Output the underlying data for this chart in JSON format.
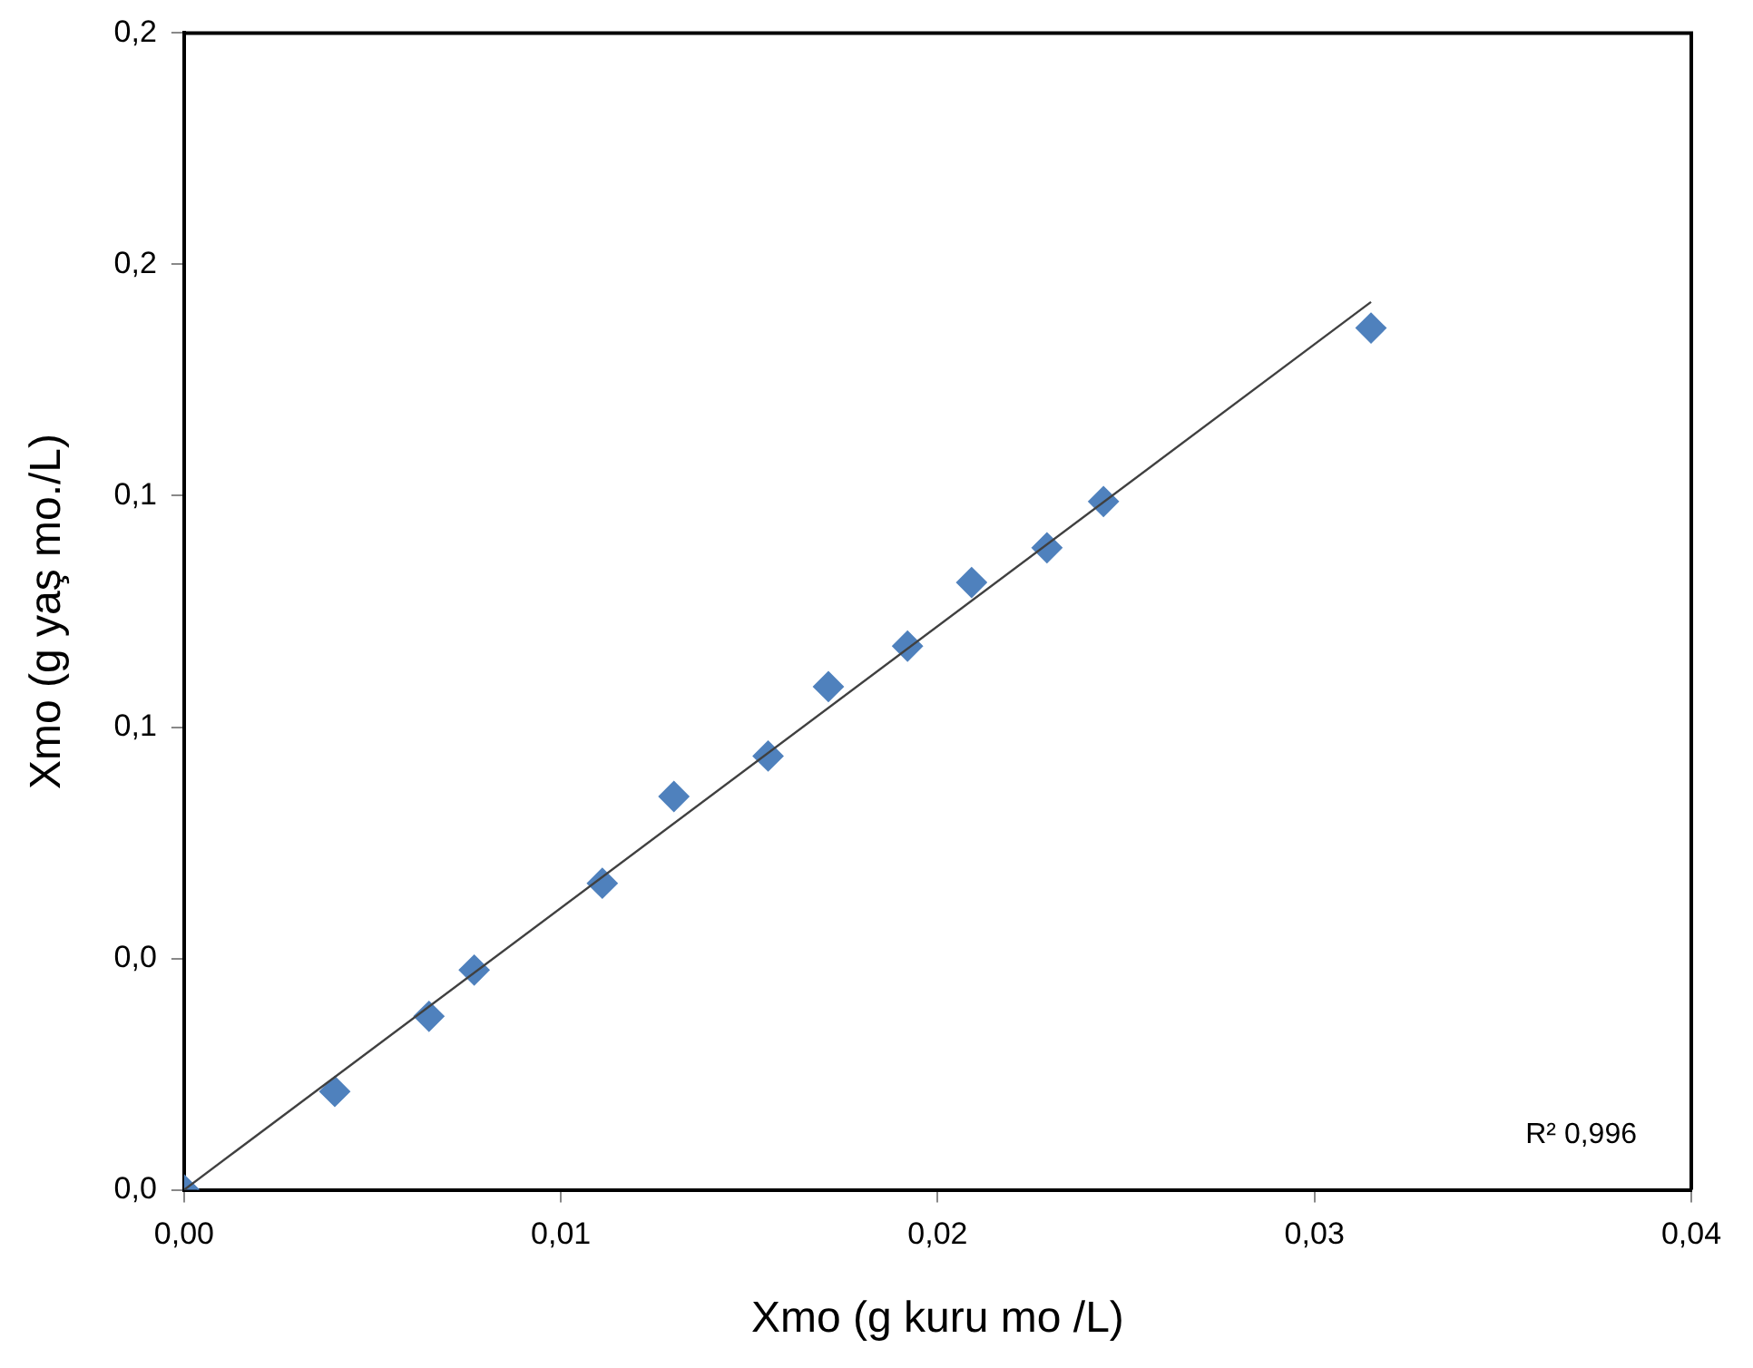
{
  "chart_data": {
    "type": "scatter",
    "xlabel": "Xmo (g kuru mo /L)",
    "ylabel": "Xmo (g yaş mo./L)",
    "annotations": [
      "R² 0,996"
    ],
    "xlim": [
      0,
      0.04
    ],
    "xticks": [
      {
        "value": 0,
        "label": "0,00"
      },
      {
        "value": 0.01,
        "label": "0,01"
      },
      {
        "value": 0.02,
        "label": "0,02"
      },
      {
        "value": 0.03,
        "label": "0,03"
      },
      {
        "value": 0.04,
        "label": "0,04"
      }
    ],
    "ylim": [
      0,
      0.2
    ],
    "yticks": [
      {
        "value": 0,
        "label": "0,0"
      },
      {
        "value": 0.04,
        "label": "0,0"
      },
      {
        "value": 0.08,
        "label": "0,1"
      },
      {
        "value": 0.12,
        "label": "0,1"
      },
      {
        "value": 0.16,
        "label": "0,2"
      },
      {
        "value": 0.2,
        "label": "0,2"
      }
    ],
    "grid": false,
    "legend": false,
    "series": [
      {
        "color": "#4f81bd",
        "marker": "diamond",
        "x": [
          0,
          0.004,
          0.0065,
          0.0077,
          0.0111,
          0.013,
          0.0155,
          0.0171,
          0.0192,
          0.0209,
          0.0229,
          0.0244,
          0.0315
        ],
        "values": [
          0,
          0.017,
          0.03,
          0.038,
          0.053,
          0.068,
          0.075,
          0.087,
          0.094,
          0.105,
          0.111,
          0.119,
          0.149
        ]
      },
      {
        "type": "line",
        "color": "#404040",
        "marker": "none",
        "line_style": "solid",
        "x": [
          0,
          0.0315
        ],
        "values": [
          0,
          0.1535
        ]
      }
    ]
  }
}
